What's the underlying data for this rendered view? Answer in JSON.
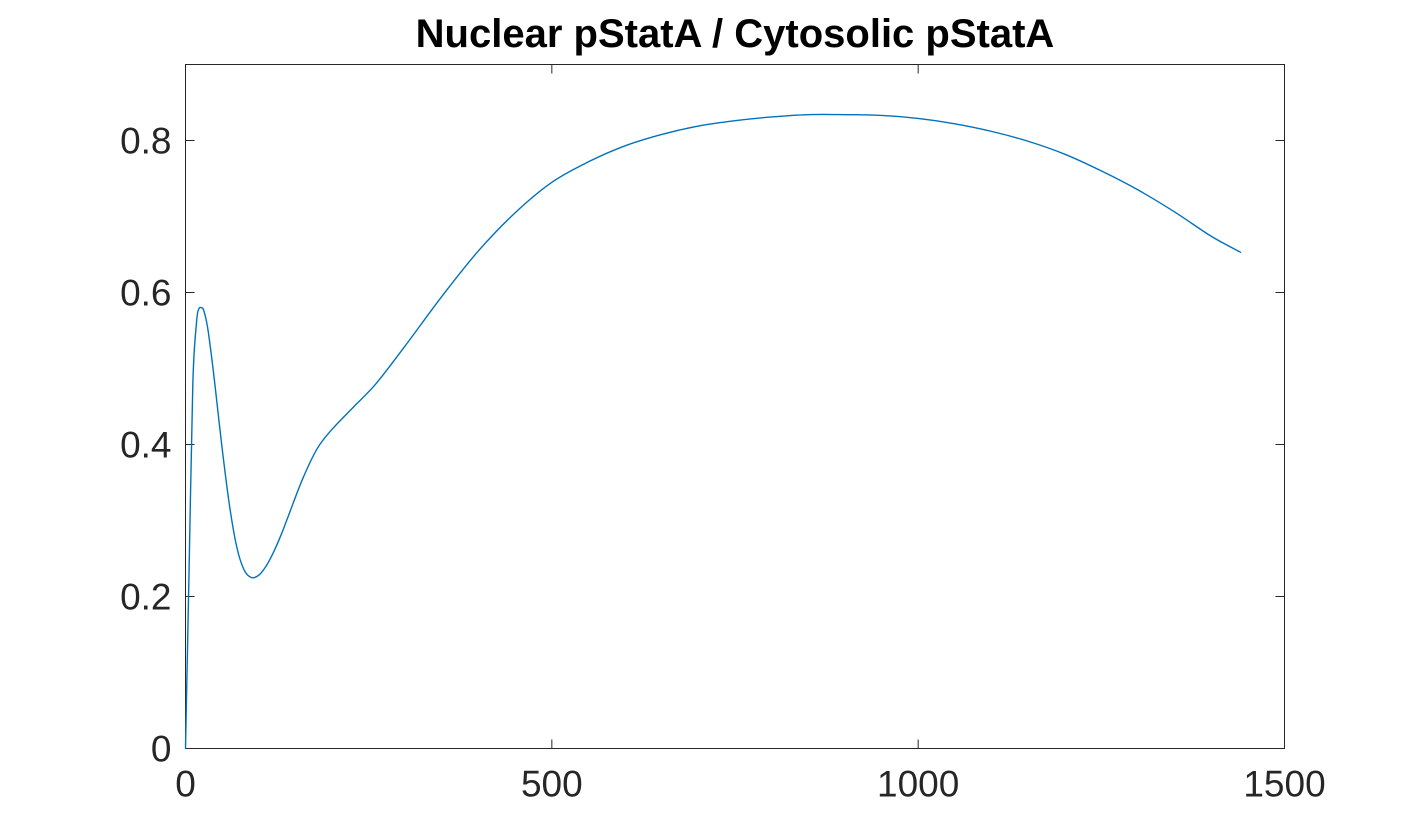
{
  "chart_data": {
    "type": "line",
    "title": "Nuclear pStatA / Cytosolic pStatA",
    "xlabel": "",
    "ylabel": "",
    "xlim": [
      0,
      1500
    ],
    "ylim": [
      0,
      0.9
    ],
    "x_ticks": [
      0,
      500,
      1000,
      1500
    ],
    "x_tick_labels": [
      "0",
      "500",
      "1000",
      "1500"
    ],
    "y_ticks": [
      0,
      0.2,
      0.4,
      0.6,
      0.8
    ],
    "y_tick_labels": [
      "0",
      "0.2",
      "0.4",
      "0.6",
      "0.8"
    ],
    "grid": false,
    "legend": "none",
    "series": [
      {
        "color": "#0072BD",
        "x": [
          0,
          5,
          10,
          15,
          18,
          22,
          25,
          30,
          35,
          40,
          50,
          60,
          70,
          80,
          90,
          100,
          110,
          120,
          130,
          140,
          160,
          180,
          200,
          230,
          260,
          300,
          350,
          400,
          450,
          500,
          550,
          600,
          650,
          700,
          750,
          800,
          850,
          900,
          950,
          1000,
          1050,
          1100,
          1150,
          1200,
          1250,
          1300,
          1350,
          1400,
          1440
        ],
        "y": [
          0.0,
          0.24,
          0.48,
          0.56,
          0.578,
          0.58,
          0.576,
          0.555,
          0.52,
          0.48,
          0.395,
          0.32,
          0.265,
          0.235,
          0.225,
          0.228,
          0.24,
          0.258,
          0.28,
          0.305,
          0.355,
          0.395,
          0.42,
          0.45,
          0.48,
          0.53,
          0.595,
          0.655,
          0.705,
          0.745,
          0.772,
          0.793,
          0.808,
          0.819,
          0.826,
          0.831,
          0.834,
          0.834,
          0.833,
          0.829,
          0.822,
          0.812,
          0.799,
          0.782,
          0.76,
          0.735,
          0.706,
          0.674,
          0.653
        ]
      }
    ]
  }
}
